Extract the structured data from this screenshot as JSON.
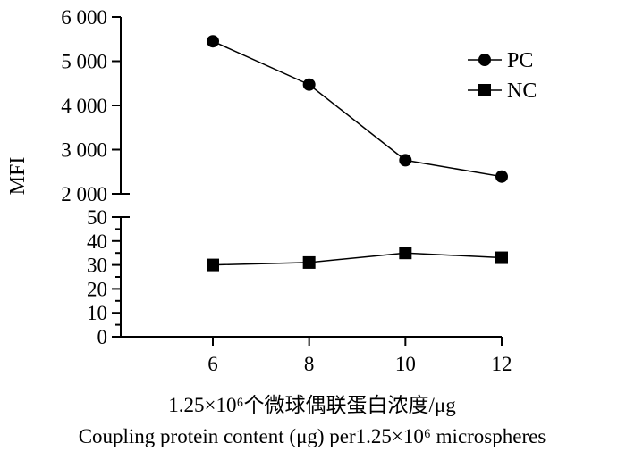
{
  "chart_data": {
    "type": "line",
    "x": [
      6,
      8,
      10,
      12
    ],
    "xticks": [
      "6",
      "8",
      "10",
      "12"
    ],
    "xlabel_cn": "1.25×10⁶个微球偶联蛋白浓度/μg",
    "xlabel_en": "Coupling protein content (μg) per1.25×10⁶ microspheres",
    "ylabel": "MFI",
    "y_axis_break": true,
    "upper_segment": {
      "ylim": [
        2000,
        6000
      ],
      "yticks": [
        2000,
        3000,
        4000,
        5000,
        6000
      ],
      "yticklabels": [
        "2 000",
        "3 000",
        "4 000",
        "5 000",
        "6 000"
      ]
    },
    "lower_segment": {
      "ylim": [
        0,
        50
      ],
      "yticks": [
        0,
        5,
        10,
        15,
        20,
        25,
        30,
        35,
        40,
        45,
        50
      ],
      "yticklabels": [
        "0",
        "10",
        "20",
        "30",
        "40",
        "50"
      ]
    },
    "series": [
      {
        "name": "PC",
        "marker": "circle",
        "values": [
          5450,
          4470,
          2760,
          2390
        ]
      },
      {
        "name": "NC",
        "marker": "square",
        "values": [
          30,
          31,
          35,
          33
        ]
      }
    ],
    "legend_position": "top-right",
    "grid": false
  }
}
